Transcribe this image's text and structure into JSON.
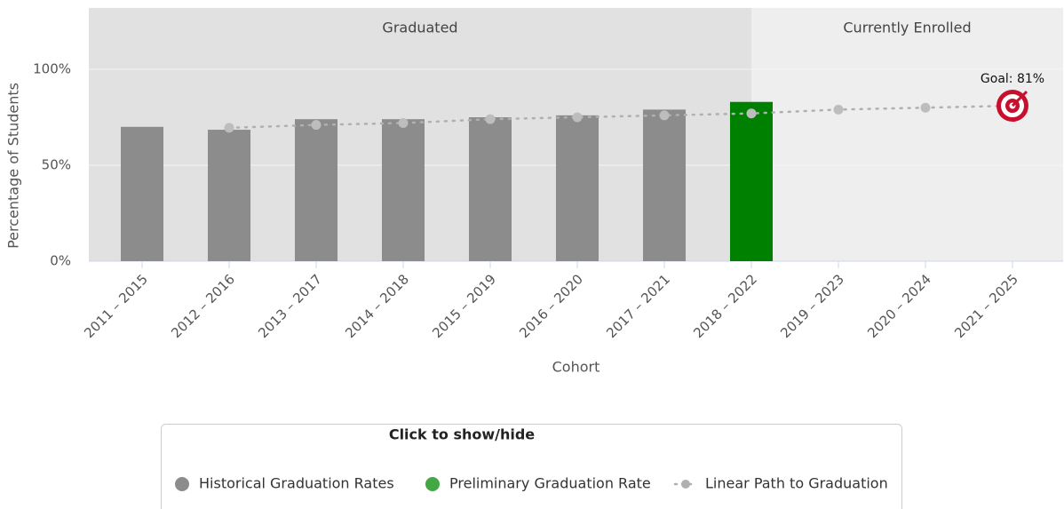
{
  "chart_data": {
    "type": "bar",
    "regions": [
      {
        "label": "Graduated"
      },
      {
        "label": "Currently Enrolled"
      }
    ],
    "categories": [
      "2011 – 2015",
      "2012 – 2016",
      "2013 – 2017",
      "2014 – 2018",
      "2015 – 2019",
      "2016 – 2020",
      "2017 – 2021",
      "2018 – 2022",
      "2019 – 2023",
      "2020 – 2024",
      "2021 – 2025"
    ],
    "series": [
      {
        "name": "Historical Graduation Rates",
        "type": "bar",
        "color": "#8c8c8c",
        "values": [
          70,
          68.5,
          74,
          74,
          75,
          76,
          79,
          null,
          null,
          null,
          null
        ]
      },
      {
        "name": "Preliminary Graduation Rate",
        "type": "bar",
        "color": "#008000",
        "legend_color": "#43a843",
        "values": [
          null,
          null,
          null,
          null,
          null,
          null,
          null,
          83,
          null,
          null,
          null
        ]
      },
      {
        "name": "Linear Path to Graduation",
        "type": "line",
        "color": "#b0b0b0",
        "values": [
          null,
          69.5,
          71,
          72,
          74,
          75,
          76,
          77,
          79,
          80,
          81
        ]
      }
    ],
    "annotation": "Goal: 81%",
    "legend_title": "Click to show/hide",
    "xlabel": "Cohort",
    "ylabel": "Percentage of Students",
    "ylim": [
      0,
      132
    ],
    "yticks": [
      {
        "value": 0,
        "label": "0%"
      },
      {
        "value": 50,
        "label": "50%"
      },
      {
        "value": 100,
        "label": "100%"
      }
    ],
    "grid": true
  }
}
